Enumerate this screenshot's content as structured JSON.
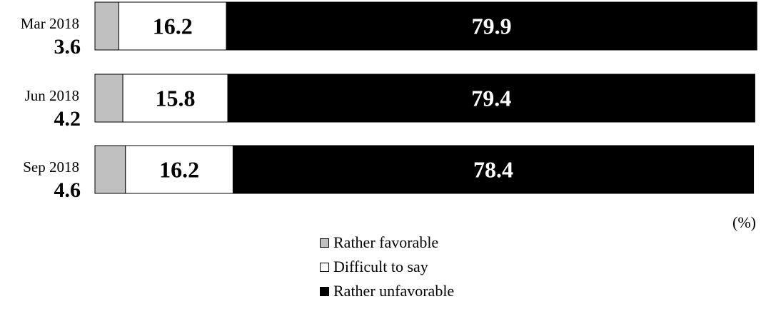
{
  "chart_data": {
    "type": "bar",
    "orientation": "horizontal",
    "stacked": true,
    "categories": [
      "Mar 2018",
      "Jun 2018",
      "Sep 2018"
    ],
    "series": [
      {
        "name": "Rather favorable",
        "color": "#c0c0c0",
        "values": [
          3.6,
          4.2,
          4.6
        ]
      },
      {
        "name": "Difficult to say",
        "color": "#ffffff",
        "values": [
          16.2,
          15.8,
          16.2
        ]
      },
      {
        "name": "Rather unfavorable",
        "color": "#000000",
        "values": [
          79.9,
          79.4,
          78.4
        ]
      }
    ],
    "xlim": [
      0,
      100
    ],
    "unit": "(%)",
    "legend_placement": "bottom-center",
    "grid": false
  }
}
